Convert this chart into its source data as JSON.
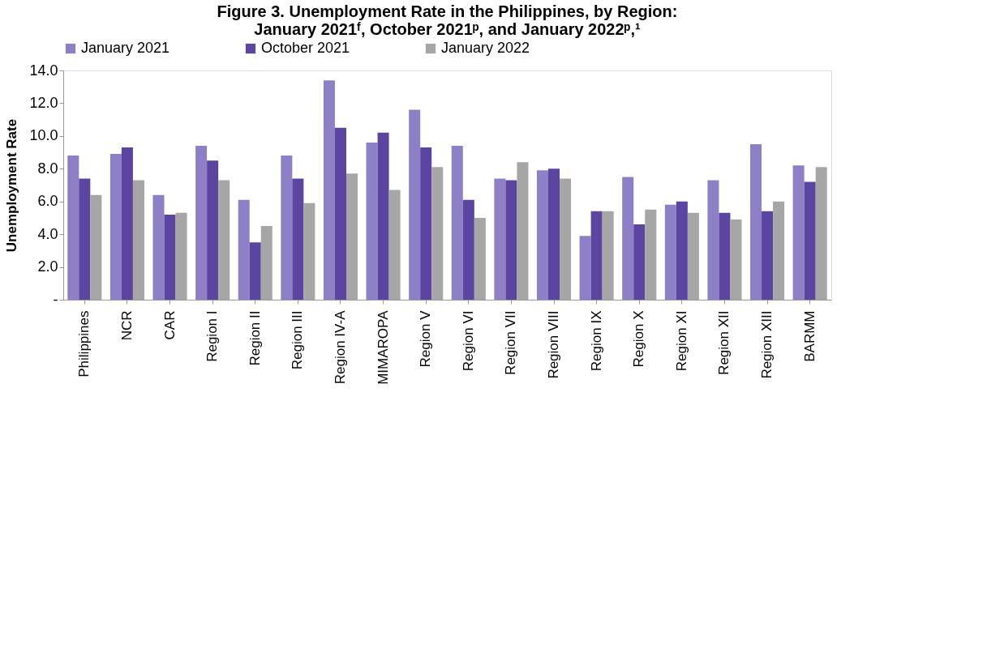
{
  "chart_data": {
    "type": "bar",
    "title": [
      "Figure 3. Unemployment Rate in the Philippines, by Region:",
      "January 2021ᶠ, October 2021ᵖ, and January 2022ᵖ,¹"
    ],
    "ylabel": "Unemployment Rate",
    "categories": [
      "Philippines",
      "NCR",
      "CAR",
      "Region I",
      "Region II",
      "Region III",
      "Region IV-A",
      "MIMAROPA",
      "Region V",
      "Region VI",
      "Region VII",
      "Region VIII",
      "Region IX",
      "Region X",
      "Region XI",
      "Region XII",
      "Region XIII",
      "BARMM"
    ],
    "series": [
      {
        "name": "January 2021",
        "color": "#8e80c6",
        "values": [
          8.8,
          8.9,
          6.4,
          9.4,
          6.1,
          8.8,
          13.4,
          9.6,
          11.6,
          9.4,
          7.4,
          7.9,
          3.9,
          7.5,
          5.8,
          7.3,
          9.5,
          8.2
        ]
      },
      {
        "name": "October 2021",
        "color": "#5b45a0",
        "values": [
          7.4,
          9.3,
          5.2,
          8.5,
          3.5,
          7.4,
          10.5,
          10.2,
          9.3,
          6.1,
          7.3,
          8.0,
          5.4,
          4.6,
          6.0,
          5.3,
          5.4,
          7.2
        ]
      },
      {
        "name": "January 2022",
        "color": "#a6a6a6",
        "values": [
          6.4,
          7.3,
          5.3,
          7.3,
          4.5,
          5.9,
          7.7,
          6.7,
          8.1,
          5.0,
          8.4,
          7.4,
          5.4,
          5.5,
          5.3,
          4.9,
          6.0,
          8.1
        ]
      }
    ],
    "ylim": [
      0,
      14
    ],
    "yticks": [
      {
        "value": 0,
        "label": "-"
      },
      {
        "value": 2,
        "label": "2.0"
      },
      {
        "value": 4,
        "label": "4.0"
      },
      {
        "value": 6,
        "label": "6.0"
      },
      {
        "value": 8,
        "label": "8.0"
      },
      {
        "value": 10,
        "label": "10.0"
      },
      {
        "value": 12,
        "label": "12.0"
      },
      {
        "value": 14,
        "label": "14.0"
      }
    ],
    "grid": false,
    "legend": "top"
  }
}
